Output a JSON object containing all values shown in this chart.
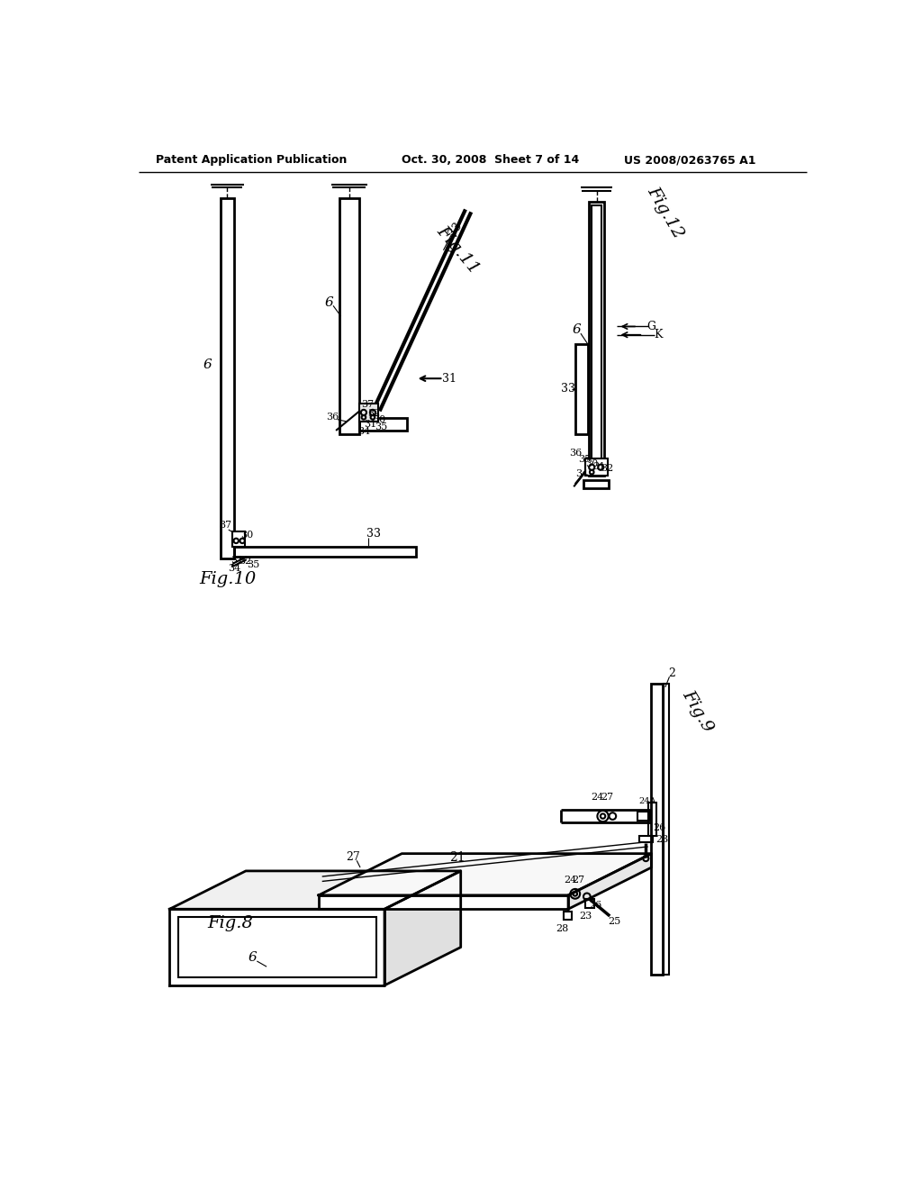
{
  "bg_color": "#ffffff",
  "line_color": "#000000",
  "header_left": "Patent Application Publication",
  "header_mid": "Oct. 30, 2008  Sheet 7 of 14",
  "header_right": "US 2008/0263765 A1"
}
